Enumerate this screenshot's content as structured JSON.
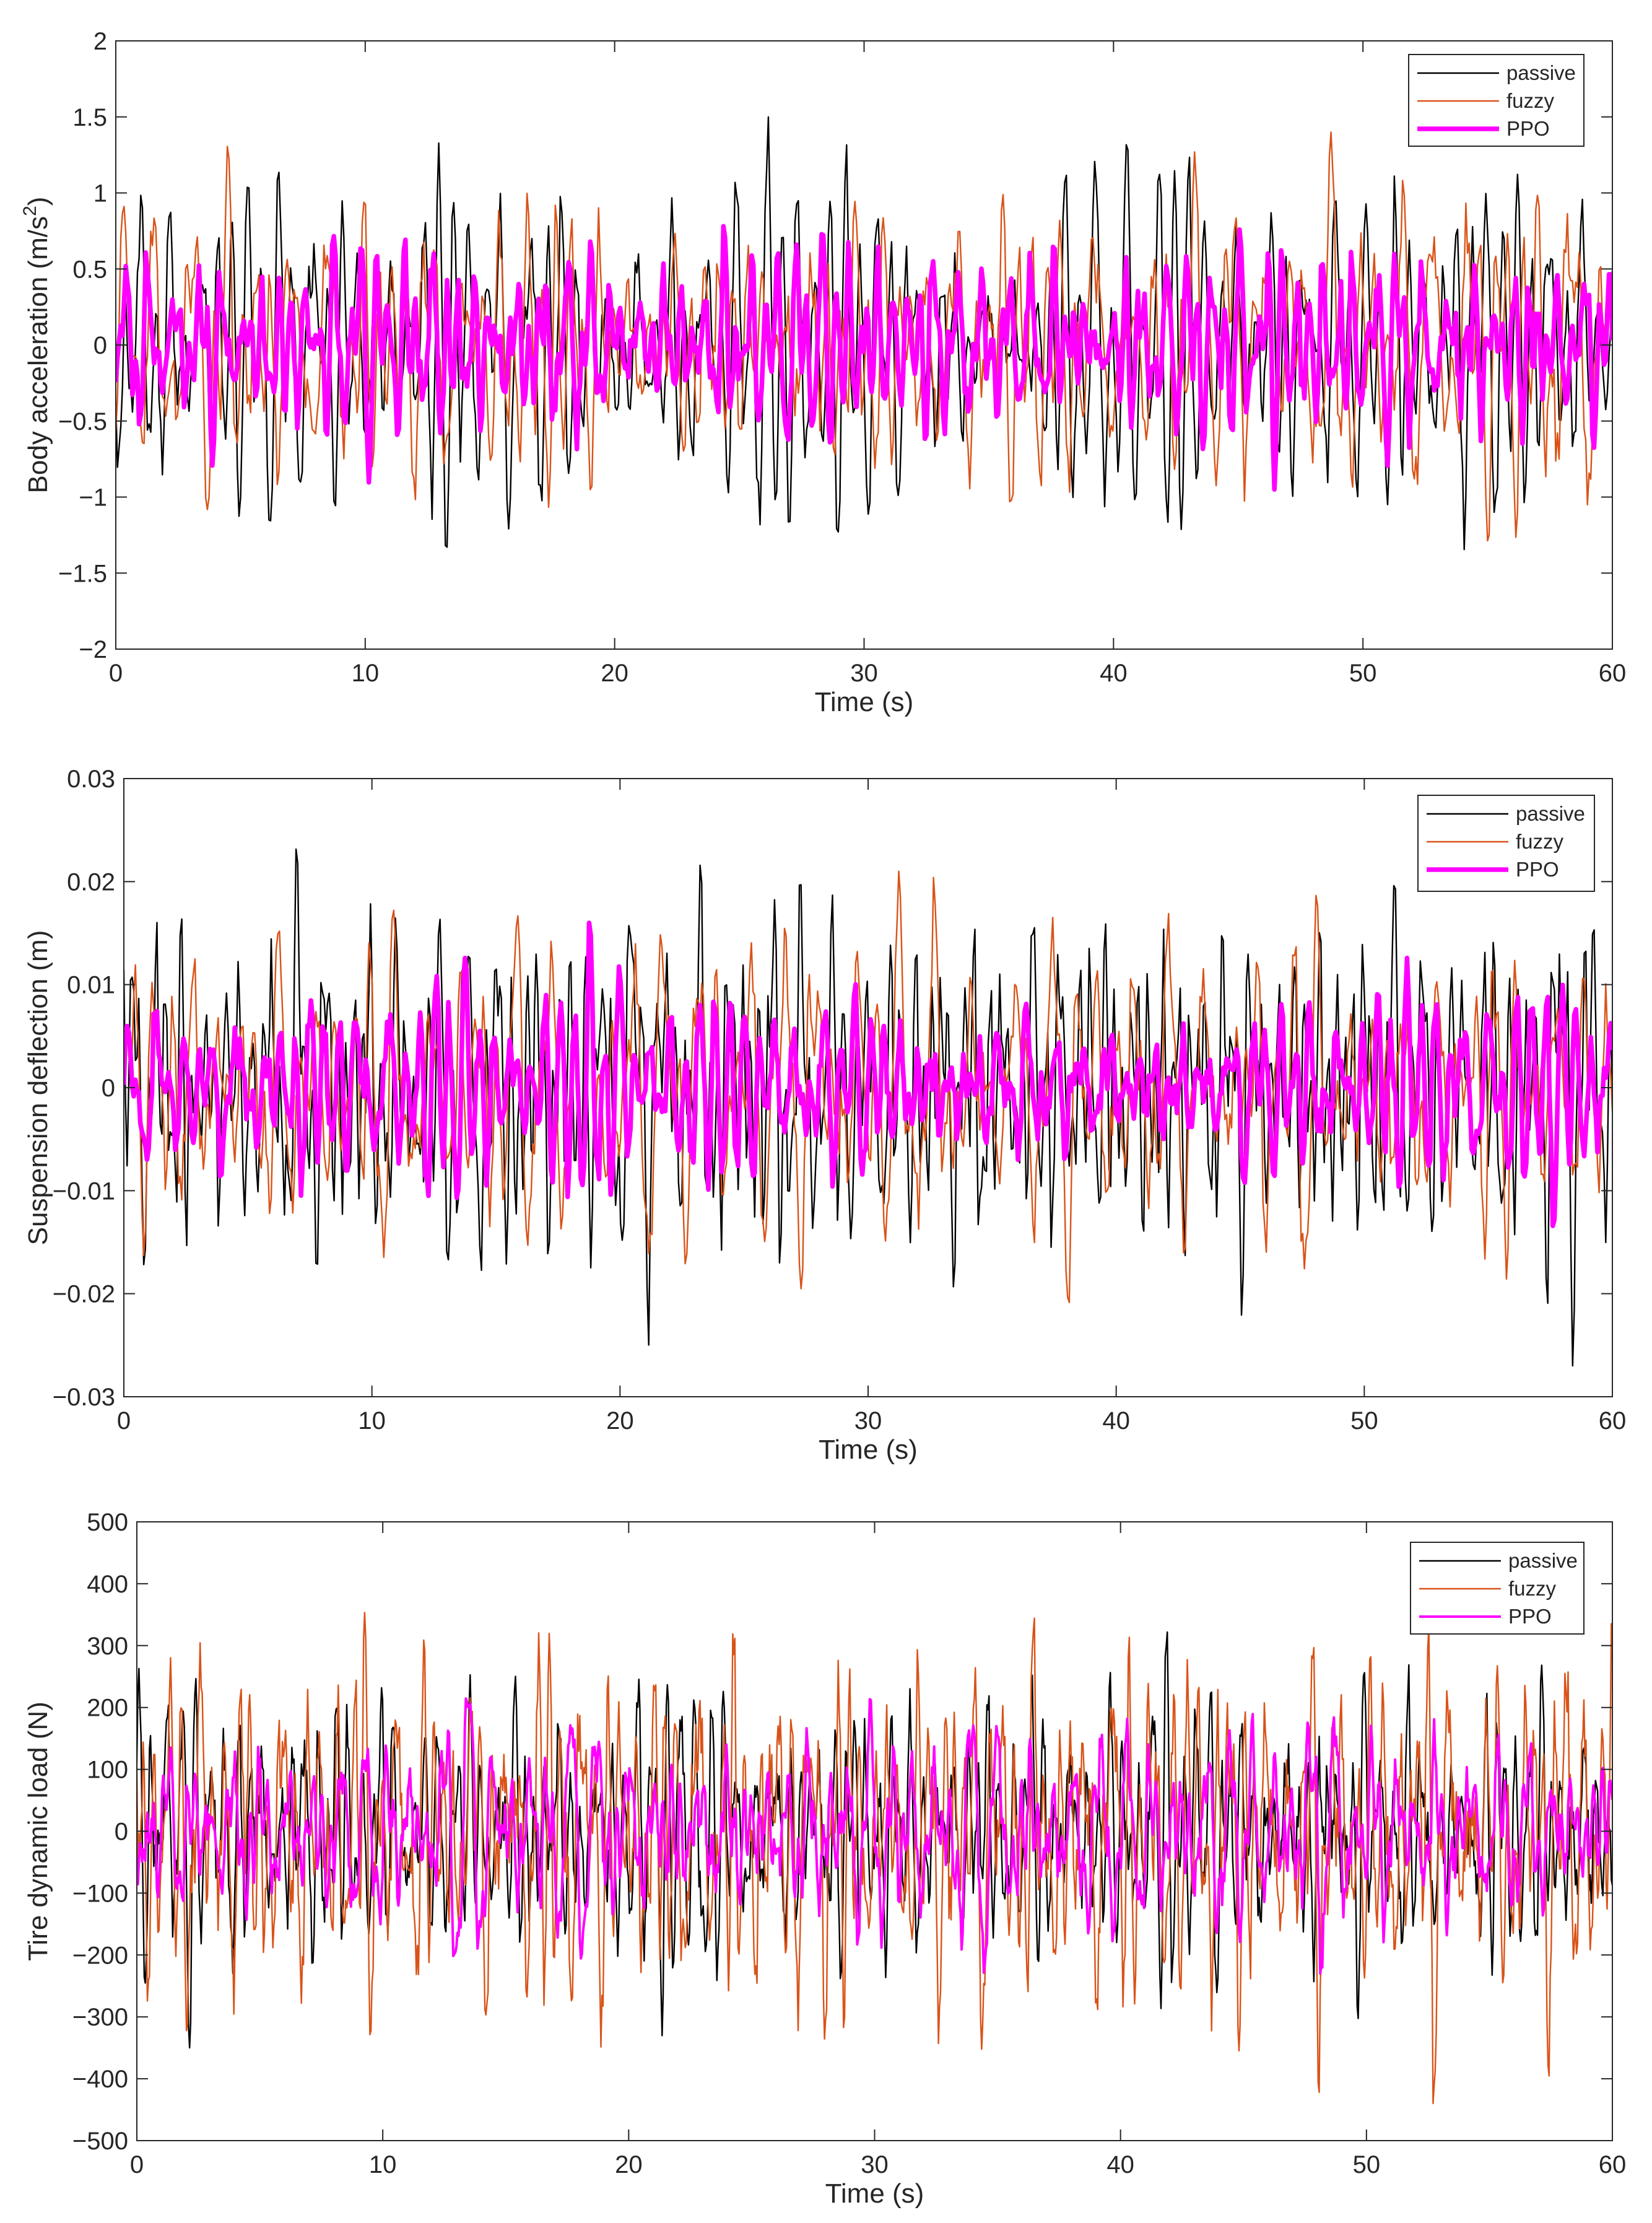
{
  "chart_data": [
    {
      "type": "line",
      "xlabel": "Time (s)",
      "ylabel": "Body acceleration (m/s",
      "ylabel_sup": "2",
      "ylabel_end": ")",
      "xlim": [
        0,
        60
      ],
      "ylim": [
        -2,
        2
      ],
      "xticks": [
        0,
        10,
        20,
        30,
        40,
        50,
        60
      ],
      "yticks": [
        -2,
        -1.5,
        -1,
        -0.5,
        0,
        0.5,
        1,
        1.5,
        2
      ],
      "ytick_labels": [
        "−2",
        "−1.5",
        "−1",
        "−0.5",
        "0",
        "0.5",
        "1",
        "1.5",
        "2"
      ],
      "legend_position": "top-right",
      "series": [
        {
          "name": "passive",
          "color": "#000000",
          "width": "thin",
          "amplitude": 0.75,
          "peaks": 1.5,
          "seed": 11
        },
        {
          "name": "fuzzy",
          "color": "#D95319",
          "width": "thin",
          "amplitude": 0.75,
          "peaks": 1.4,
          "seed": 23
        },
        {
          "name": "PPO",
          "color": "#FF00FF",
          "width": "thick",
          "amplitude": 0.42,
          "peaks": 0.95,
          "seed": 37
        }
      ]
    },
    {
      "type": "line",
      "xlabel": "Time (s)",
      "ylabel": "Suspension deflection (m)",
      "xlim": [
        0,
        60
      ],
      "ylim": [
        -0.03,
        0.03
      ],
      "xticks": [
        0,
        10,
        20,
        30,
        40,
        50,
        60
      ],
      "yticks": [
        -0.03,
        -0.02,
        -0.01,
        0,
        0.01,
        0.02,
        0.03
      ],
      "ytick_labels": [
        "−0.03",
        "−0.02",
        "−0.01",
        "0",
        "0.01",
        "0.02",
        "0.03"
      ],
      "legend_position": "top-right",
      "series": [
        {
          "name": "passive",
          "color": "#000000",
          "width": "thin",
          "amplitude": 0.013,
          "peaks": 0.027,
          "seed": 51
        },
        {
          "name": "fuzzy",
          "color": "#D95319",
          "width": "thin",
          "amplitude": 0.011,
          "peaks": 0.021,
          "seed": 63
        },
        {
          "name": "PPO",
          "color": "#FF00FF",
          "width": "thick",
          "amplitude": 0.0075,
          "peaks": 0.016,
          "seed": 77
        }
      ]
    },
    {
      "type": "line",
      "xlabel": "Time (s)",
      "ylabel": "Tire dynamic load (N)",
      "xlim": [
        0,
        60
      ],
      "ylim": [
        -500,
        500
      ],
      "xticks": [
        0,
        10,
        20,
        30,
        40,
        50,
        60
      ],
      "yticks": [
        -500,
        -400,
        -300,
        -200,
        -100,
        0,
        100,
        200,
        300,
        400,
        500
      ],
      "ytick_labels": [
        "−500",
        "−400",
        "−300",
        "−200",
        "−100",
        "0",
        "100",
        "200",
        "300",
        "400",
        "500"
      ],
      "legend_position": "top-right",
      "series": [
        {
          "name": "passive",
          "color": "#000000",
          "width": "thin",
          "amplitude": 150,
          "peaks": 350,
          "seed": 91
        },
        {
          "name": "fuzzy",
          "color": "#D95319",
          "width": "thin",
          "amplitude": 160,
          "peaks": 440,
          "seed": 103
        },
        {
          "name": "PPO",
          "color": "#FF00FF",
          "width": "medium",
          "amplitude": 95,
          "peaks": 230,
          "seed": 117
        }
      ]
    }
  ]
}
